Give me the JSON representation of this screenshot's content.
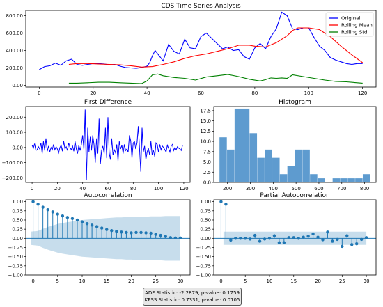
{
  "statistics": {
    "adf": "ADF Statistic: -2.2879, p-value: 0.1759",
    "kpss": "KPSS Statistic: 0.7331, p-value: 0.0105"
  },
  "chart_data": [
    {
      "type": "line",
      "title": "CDS Time Series Analysis",
      "xlim": [
        -5,
        125
      ],
      "ylim": [
        -20,
        860
      ],
      "xticks": [
        0,
        20,
        40,
        60,
        80,
        100,
        120
      ],
      "yticks": [
        0,
        200,
        400,
        600,
        800
      ],
      "ytick_labels": [
        "0.00",
        "200.00",
        "400.00",
        "600.00",
        "800.00"
      ],
      "legend": "top-right",
      "series": [
        {
          "name": "Original",
          "color": "#0000ff",
          "x": [
            0,
            2,
            4,
            6,
            8,
            10,
            12,
            14,
            16,
            18,
            20,
            22,
            24,
            26,
            28,
            30,
            32,
            34,
            36,
            38,
            40,
            41,
            42,
            43,
            44,
            46,
            48,
            50,
            52,
            54,
            56,
            58,
            60,
            62,
            64,
            66,
            68,
            70,
            72,
            74,
            76,
            78,
            80,
            82,
            84,
            86,
            88,
            90,
            92,
            94,
            96,
            98,
            100,
            102,
            104,
            106,
            108,
            110,
            112,
            114,
            116,
            118,
            120
          ],
          "y": [
            180,
            215,
            225,
            255,
            230,
            280,
            300,
            240,
            230,
            240,
            250,
            250,
            245,
            235,
            240,
            220,
            205,
            200,
            195,
            205,
            220,
            260,
            340,
            400,
            360,
            280,
            470,
            390,
            360,
            530,
            430,
            420,
            560,
            600,
            540,
            480,
            420,
            440,
            400,
            410,
            330,
            300,
            430,
            480,
            420,
            560,
            650,
            840,
            800,
            650,
            640,
            660,
            660,
            550,
            450,
            400,
            320,
            290,
            270,
            250,
            240,
            250,
            250
          ]
        },
        {
          "name": "Rolling Mean",
          "color": "#ff0000",
          "x": [
            11,
            14,
            18,
            22,
            26,
            30,
            34,
            38,
            42,
            46,
            50,
            54,
            58,
            62,
            66,
            70,
            74,
            78,
            80,
            84,
            88,
            90,
            92,
            94,
            96,
            100,
            104,
            108,
            112,
            116,
            120
          ],
          "y": [
            240,
            250,
            250,
            245,
            240,
            235,
            225,
            210,
            215,
            240,
            270,
            310,
            340,
            360,
            390,
            420,
            460,
            460,
            450,
            440,
            490,
            530,
            570,
            630,
            660,
            660,
            640,
            560,
            450,
            350,
            260
          ]
        },
        {
          "name": "Rolling Std",
          "color": "#008000",
          "x": [
            11,
            14,
            18,
            22,
            26,
            30,
            34,
            38,
            40,
            42,
            44,
            46,
            50,
            54,
            58,
            62,
            66,
            70,
            74,
            78,
            82,
            84,
            86,
            88,
            90,
            92,
            94,
            98,
            102,
            106,
            110,
            114,
            118,
            120
          ],
          "y": [
            25,
            25,
            30,
            35,
            35,
            30,
            25,
            20,
            50,
            120,
            130,
            110,
            90,
            80,
            60,
            95,
            110,
            125,
            100,
            70,
            50,
            65,
            85,
            80,
            85,
            80,
            120,
            100,
            80,
            60,
            45,
            40,
            30,
            25
          ]
        }
      ]
    },
    {
      "type": "line",
      "title": "First Difference",
      "xlim": [
        -5,
        125
      ],
      "ylim": [
        -230,
        270
      ],
      "xticks": [
        0,
        20,
        40,
        60,
        80,
        100,
        120
      ],
      "yticks": [
        -200,
        -100,
        0,
        100,
        200
      ],
      "ytick_labels": [
        "-200.00",
        "-100.00",
        "0.00",
        "100.00",
        "200.00"
      ],
      "series": [
        {
          "name": "",
          "color": "#0000ff",
          "x": [
            0,
            1,
            2,
            3,
            4,
            5,
            6,
            7,
            8,
            9,
            10,
            11,
            12,
            13,
            14,
            15,
            16,
            17,
            18,
            19,
            20,
            21,
            22,
            23,
            24,
            25,
            26,
            27,
            28,
            29,
            30,
            31,
            32,
            33,
            34,
            35,
            36,
            37,
            38,
            39,
            40,
            41,
            42,
            43,
            44,
            45,
            46,
            47,
            48,
            49,
            50,
            51,
            52,
            53,
            54,
            55,
            56,
            57,
            58,
            59,
            60,
            61,
            62,
            63,
            64,
            65,
            66,
            67,
            68,
            69,
            70,
            71,
            72,
            73,
            74,
            75,
            76,
            77,
            78,
            79,
            80,
            81,
            82,
            83,
            84,
            85,
            86,
            87,
            88,
            89,
            90,
            91,
            92,
            93,
            94,
            95,
            96,
            97,
            98,
            99,
            100,
            101,
            102,
            103,
            104,
            105,
            106,
            107,
            108,
            109,
            110,
            111,
            112,
            113,
            114,
            115,
            116,
            117,
            118,
            119
          ],
          "y": [
            15,
            -5,
            25,
            -20,
            -15,
            5,
            -10,
            30,
            -40,
            40,
            -20,
            60,
            -25,
            10,
            -30,
            0,
            -15,
            20,
            -15,
            5,
            -10,
            -35,
            0,
            15,
            -25,
            40,
            -10,
            5,
            -20,
            30,
            0,
            -15,
            10,
            -25,
            40,
            -10,
            -40,
            15,
            -20,
            20,
            80,
            -15,
            250,
            -215,
            130,
            -30,
            70,
            -20,
            80,
            20,
            -100,
            60,
            -40,
            190,
            -110,
            -20,
            10,
            -40,
            130,
            -70,
            200,
            -35,
            -80,
            60,
            -50,
            -15,
            -35,
            20,
            -90,
            40,
            -10,
            15,
            -40,
            20,
            -20,
            -10,
            -30,
            80,
            45,
            -70,
            30,
            40,
            -10,
            30,
            140,
            -10,
            -160,
            130,
            -30,
            10,
            -80,
            -30,
            -5,
            -50,
            40,
            -50,
            -20,
            -60,
            30,
            20,
            -30,
            20,
            -15,
            10,
            0,
            -15,
            -30,
            15,
            -5,
            -30,
            10,
            20,
            -20,
            0,
            -15,
            5,
            -5,
            -10,
            -20,
            15
          ]
        }
      ]
    },
    {
      "type": "bar",
      "title": "Histogram",
      "xlim": [
        140,
        850
      ],
      "ylim": [
        0,
        18.5
      ],
      "xticks": [
        200,
        300,
        400,
        500,
        600,
        700,
        800
      ],
      "yticks": [
        0,
        2.5,
        5,
        7.5,
        10,
        12.5,
        15,
        17.5
      ],
      "ytick_labels": [
        "0.0",
        "2.5",
        "5.0",
        "7.5",
        "10.0",
        "12.5",
        "15.0",
        "17.5"
      ],
      "bin_edges": [
        165,
        198,
        231,
        264,
        297,
        330,
        363,
        396,
        429,
        462,
        495,
        528,
        561,
        594,
        627,
        660,
        693,
        726,
        759,
        792,
        825
      ],
      "values": [
        11,
        8,
        18,
        18,
        12,
        6,
        8,
        6,
        2,
        4,
        8,
        8,
        2,
        1,
        0,
        1,
        1,
        1,
        1,
        2
      ],
      "color": "#5e9bcf"
    },
    {
      "type": "bar",
      "title": "Autocorrelation",
      "xlim": [
        -1.5,
        32
      ],
      "ylim": [
        -1.0,
        1.05
      ],
      "xticks": [
        0,
        5,
        10,
        15,
        20,
        25,
        30
      ],
      "yticks": [
        -1.0,
        -0.75,
        -0.5,
        -0.25,
        0.0,
        0.25,
        0.5,
        0.75,
        1.0
      ],
      "ytick_labels": [
        "-1.00",
        "-0.75",
        "-0.50",
        "-0.25",
        "0.00",
        "0.25",
        "0.50",
        "0.75",
        "1.00"
      ],
      "lags": [
        0,
        1,
        2,
        3,
        4,
        5,
        6,
        7,
        8,
        9,
        10,
        11,
        12,
        13,
        14,
        15,
        16,
        17,
        18,
        19,
        20,
        21,
        22,
        23,
        24,
        25,
        26,
        27,
        28,
        29,
        30
      ],
      "values": [
        1.0,
        0.93,
        0.85,
        0.78,
        0.72,
        0.66,
        0.61,
        0.57,
        0.54,
        0.5,
        0.45,
        0.4,
        0.36,
        0.32,
        0.28,
        0.24,
        0.21,
        0.19,
        0.17,
        0.16,
        0.15,
        0.16,
        0.16,
        0.15,
        0.14,
        0.11,
        0.08,
        0.05,
        0.02,
        0.01,
        0.01
      ],
      "confidence_band": [
        0.18,
        0.2,
        0.26,
        0.31,
        0.35,
        0.39,
        0.42,
        0.44,
        0.46,
        0.48,
        0.5,
        0.51,
        0.52,
        0.53,
        0.54,
        0.55,
        0.56,
        0.57,
        0.57,
        0.58,
        0.58,
        0.59,
        0.59,
        0.59,
        0.6,
        0.6,
        0.6,
        0.61,
        0.61,
        0.61,
        0.61
      ],
      "color": "#1f77b4"
    },
    {
      "type": "bar",
      "title": "Partial Autocorrelation",
      "xlim": [
        -1.5,
        32
      ],
      "ylim": [
        -1.0,
        1.05
      ],
      "xticks": [
        0,
        5,
        10,
        15,
        20,
        25,
        30
      ],
      "yticks": [
        -1.0,
        -0.75,
        -0.5,
        -0.25,
        0.0,
        0.25,
        0.5,
        0.75,
        1.0
      ],
      "ytick_labels": [
        "-1.00",
        "-0.75",
        "-0.50",
        "-0.25",
        "0.00",
        "0.25",
        "0.50",
        "0.75",
        "1.00"
      ],
      "lags": [
        0,
        1,
        2,
        3,
        4,
        5,
        6,
        7,
        8,
        9,
        10,
        11,
        12,
        13,
        14,
        15,
        16,
        17,
        18,
        19,
        20,
        21,
        22,
        23,
        24,
        25,
        26,
        27,
        28,
        29,
        30
      ],
      "values": [
        1.0,
        0.93,
        -0.05,
        0.0,
        0.0,
        0.0,
        -0.02,
        0.08,
        -0.08,
        -0.02,
        0.0,
        0.07,
        -0.12,
        -0.12,
        0.02,
        0.02,
        0.0,
        0.03,
        0.06,
        0.12,
        0.03,
        -0.04,
        0.17,
        -0.08,
        -0.03,
        -0.22,
        0.07,
        -0.17,
        -0.15,
        -0.03,
        0.02
      ],
      "confidence_band": [
        0.18
      ],
      "color": "#1f77b4"
    }
  ]
}
